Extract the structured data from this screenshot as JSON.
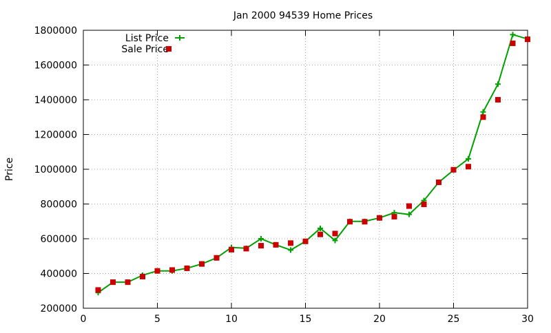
{
  "chart_data": {
    "type": "line",
    "title": "Jan 2000 94539 Home Prices",
    "xlabel": "",
    "ylabel": "Price",
    "xlim": [
      0,
      30
    ],
    "ylim": [
      200000,
      1800000
    ],
    "x_ticks": [
      0,
      5,
      10,
      15,
      20,
      25,
      30
    ],
    "y_ticks": [
      200000,
      400000,
      600000,
      800000,
      1000000,
      1200000,
      1400000,
      1600000,
      1800000
    ],
    "grid": true,
    "legend_position": "top-left",
    "series": [
      {
        "name": "List Price",
        "style": "line+plus",
        "color": "#00a000",
        "x": [
          1,
          2,
          3,
          4,
          5,
          6,
          7,
          8,
          9,
          10,
          11,
          12,
          13,
          14,
          15,
          16,
          17,
          18,
          19,
          20,
          21,
          22,
          23,
          24,
          25,
          26,
          27,
          28,
          29,
          30
        ],
        "y": [
          290000,
          350000,
          350000,
          390000,
          415000,
          415000,
          430000,
          455000,
          490000,
          550000,
          545000,
          600000,
          565000,
          535000,
          585000,
          660000,
          590000,
          700000,
          700000,
          720000,
          750000,
          740000,
          820000,
          925000,
          995000,
          1060000,
          1330000,
          1490000,
          1775000,
          1750000
        ]
      },
      {
        "name": "Sale Price",
        "style": "square",
        "color": "#cc0000",
        "x": [
          1,
          2,
          3,
          4,
          5,
          6,
          7,
          8,
          9,
          10,
          11,
          12,
          13,
          14,
          15,
          16,
          17,
          18,
          19,
          20,
          21,
          22,
          23,
          24,
          25,
          26,
          27,
          28,
          29,
          30
        ],
        "y": [
          305000,
          350000,
          350000,
          382000,
          415000,
          420000,
          430000,
          455000,
          490000,
          537000,
          543000,
          560000,
          565000,
          575000,
          585000,
          625000,
          630000,
          698000,
          698000,
          720000,
          727000,
          788000,
          798000,
          925000,
          997000,
          1015000,
          1300000,
          1400000,
          1725000,
          1748000
        ]
      }
    ]
  }
}
